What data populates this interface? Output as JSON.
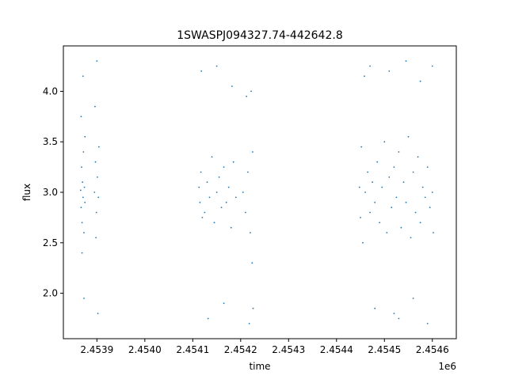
{
  "chart_data": {
    "type": "scatter",
    "title": "1SWASPJ094327.74-442642.8",
    "xlabel": "time",
    "ylabel": "flux",
    "x_offset_label": "1e6",
    "xlim": [
      2453830,
      2454650
    ],
    "ylim": [
      1.55,
      4.45
    ],
    "xticks": [
      {
        "value": 2453900,
        "label": "2.4539"
      },
      {
        "value": 2454000,
        "label": "2.4540"
      },
      {
        "value": 2454100,
        "label": "2.4541"
      },
      {
        "value": 2454200,
        "label": "2.4542"
      },
      {
        "value": 2454300,
        "label": "2.4543"
      },
      {
        "value": 2454400,
        "label": "2.4544"
      },
      {
        "value": 2454500,
        "label": "2.4545"
      },
      {
        "value": 2454600,
        "label": "2.4546"
      }
    ],
    "yticks": [
      {
        "value": 2.0,
        "label": "2.0"
      },
      {
        "value": 2.5,
        "label": "2.5"
      },
      {
        "value": 3.0,
        "label": "3.0"
      },
      {
        "value": 3.5,
        "label": "3.5"
      },
      {
        "value": 4.0,
        "label": "4.0"
      }
    ],
    "grid": false,
    "marker_color": "#1f77b4",
    "series": [
      {
        "points": [
          [
            2453866,
            3.02
          ],
          [
            2453867,
            2.85
          ],
          [
            2453868,
            3.25
          ],
          [
            2453869,
            2.7
          ],
          [
            2453870,
            3.1
          ],
          [
            2453871,
            2.95
          ],
          [
            2453872,
            3.4
          ],
          [
            2453873,
            2.6
          ],
          [
            2453874,
            3.05
          ],
          [
            2453875,
            2.9
          ],
          [
            2453867,
            3.75
          ],
          [
            2453869,
            2.4
          ],
          [
            2453871,
            4.15
          ],
          [
            2453873,
            1.95
          ],
          [
            2453875,
            3.55
          ],
          [
            2453895,
            3.0
          ],
          [
            2453897,
            3.3
          ],
          [
            2453899,
            2.8
          ],
          [
            2453901,
            3.15
          ],
          [
            2453903,
            2.95
          ],
          [
            2453896,
            3.85
          ],
          [
            2453898,
            2.55
          ],
          [
            2453900,
            4.3
          ],
          [
            2453902,
            1.8
          ],
          [
            2453904,
            3.45
          ],
          [
            2454113,
            3.05
          ],
          [
            2454115,
            2.9
          ],
          [
            2454117,
            3.2
          ],
          [
            2454120,
            2.75
          ],
          [
            2454125,
            2.8
          ],
          [
            2454130,
            3.1
          ],
          [
            2454135,
            2.95
          ],
          [
            2454140,
            3.35
          ],
          [
            2454145,
            2.7
          ],
          [
            2454150,
            3.0
          ],
          [
            2454155,
            3.15
          ],
          [
            2454160,
            2.85
          ],
          [
            2454165,
            3.25
          ],
          [
            2454170,
            2.9
          ],
          [
            2454175,
            3.05
          ],
          [
            2454180,
            2.65
          ],
          [
            2454185,
            3.3
          ],
          [
            2454190,
            2.95
          ],
          [
            2454118,
            4.2
          ],
          [
            2454132,
            1.75
          ],
          [
            2454150,
            4.25
          ],
          [
            2454165,
            1.9
          ],
          [
            2454182,
            4.05
          ],
          [
            2454205,
            3.0
          ],
          [
            2454210,
            2.8
          ],
          [
            2454215,
            3.2
          ],
          [
            2454220,
            2.6
          ],
          [
            2454225,
            3.4
          ],
          [
            2454212,
            3.95
          ],
          [
            2454218,
            1.7
          ],
          [
            2454222,
            4.0
          ],
          [
            2454224,
            2.3
          ],
          [
            2454226,
            1.85
          ],
          [
            2454448,
            3.05
          ],
          [
            2454450,
            2.75
          ],
          [
            2454452,
            3.45
          ],
          [
            2454455,
            2.5
          ],
          [
            2454458,
            4.15
          ],
          [
            2454460,
            3.0
          ],
          [
            2454465,
            3.2
          ],
          [
            2454470,
            2.8
          ],
          [
            2454475,
            3.1
          ],
          [
            2454480,
            2.9
          ],
          [
            2454485,
            3.3
          ],
          [
            2454490,
            2.7
          ],
          [
            2454495,
            3.05
          ],
          [
            2454500,
            3.5
          ],
          [
            2454505,
            2.6
          ],
          [
            2454510,
            3.15
          ],
          [
            2454515,
            2.85
          ],
          [
            2454520,
            3.25
          ],
          [
            2454525,
            2.95
          ],
          [
            2454530,
            3.4
          ],
          [
            2454535,
            2.65
          ],
          [
            2454540,
            3.1
          ],
          [
            2454545,
            2.9
          ],
          [
            2454550,
            3.55
          ],
          [
            2454555,
            2.55
          ],
          [
            2454560,
            3.2
          ],
          [
            2454565,
            2.8
          ],
          [
            2454570,
            3.35
          ],
          [
            2454575,
            2.7
          ],
          [
            2454580,
            3.05
          ],
          [
            2454585,
            2.95
          ],
          [
            2454590,
            3.25
          ],
          [
            2454595,
            2.85
          ],
          [
            2454600,
            3.0
          ],
          [
            2454602,
            2.6
          ],
          [
            2454470,
            4.25
          ],
          [
            2454480,
            1.85
          ],
          [
            2454510,
            4.2
          ],
          [
            2454520,
            1.8
          ],
          [
            2454545,
            4.3
          ],
          [
            2454560,
            1.95
          ],
          [
            2454575,
            4.1
          ],
          [
            2454590,
            1.7
          ],
          [
            2454600,
            4.25
          ],
          [
            2454530,
            1.75
          ]
        ]
      }
    ]
  }
}
